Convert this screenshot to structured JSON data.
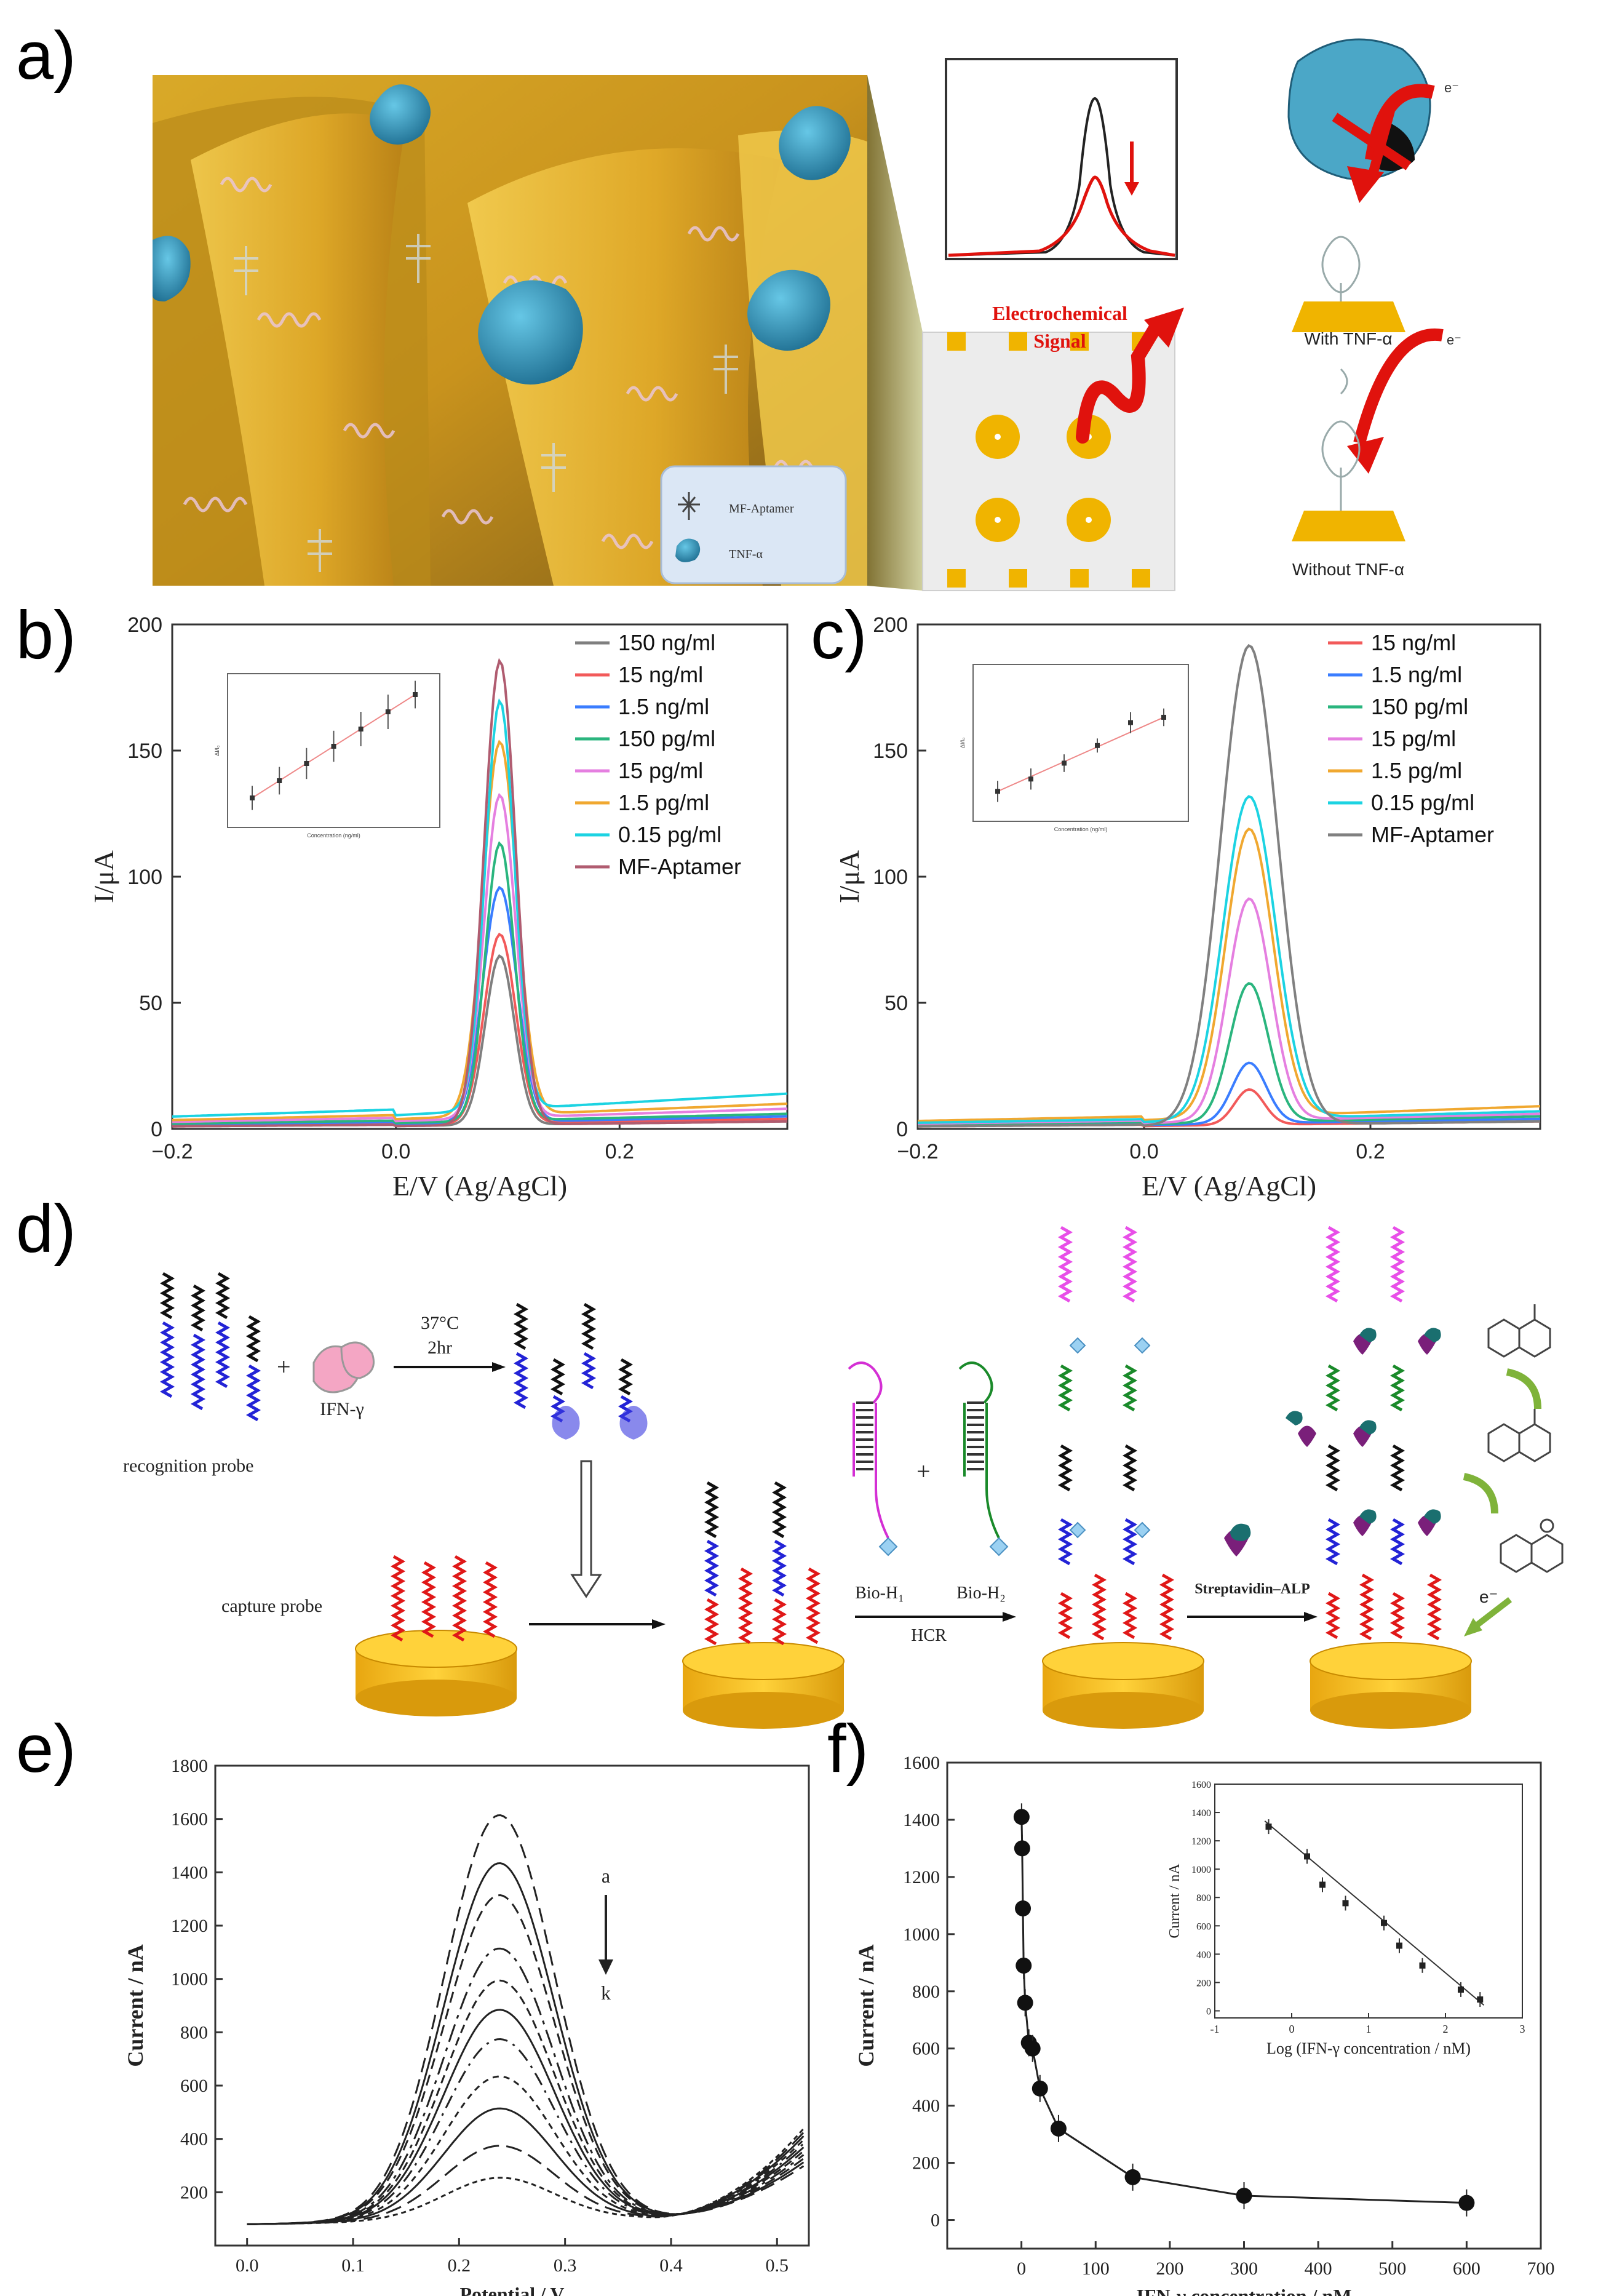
{
  "panel_labels": {
    "a": "a)",
    "b": "b)",
    "c": "c)",
    "d": "d)",
    "e": "e)",
    "f": "f)"
  },
  "panel_a": {
    "legend": {
      "aptamer": "MF-Aptamer",
      "tnf": "TNF-α"
    },
    "signal_label_1": "Electrochemical",
    "signal_label_2": "Signal",
    "electron": "e⁻",
    "with_label": "With TNF-α",
    "without_label": "Without TNF-α",
    "colors": {
      "gold": "#e5b321",
      "protein": "#3fa3c7",
      "signal_red": "#e0120d"
    }
  },
  "panel_d": {
    "recognition_probe": "recognition probe",
    "ifn": "IFN-γ",
    "temp": "37°C",
    "time": "2hr",
    "capture_probe": "capture probe",
    "bio_h1": "Bio-H₁",
    "bio_h2": "Bio-H₂",
    "hcr": "HCR",
    "streptavidin": "Streptavidin–ALP",
    "electron": "e⁻",
    "plus": "+"
  },
  "chart_data": [
    {
      "id": "b",
      "type": "line",
      "xlabel": "E/V (Ag/AgCl)",
      "ylabel": "I/μA",
      "xlim": [
        -0.2,
        0.35
      ],
      "ylim": [
        0,
        200
      ],
      "xticks": [
        "-0.2",
        "0.0",
        "0.2"
      ],
      "yticks": [
        "0",
        "50",
        "100",
        "150",
        "200"
      ],
      "legend_position": "top-right",
      "series": [
        {
          "name": "150 ng/ml",
          "color": "#7f7f7f",
          "peak": 67,
          "base": 3
        },
        {
          "name": "15 ng/ml",
          "color": "#f25a5a",
          "peak": 75,
          "base": 4
        },
        {
          "name": "1.5 ng/ml",
          "color": "#3a7dff",
          "peak": 93,
          "base": 5
        },
        {
          "name": "150 pg/ml",
          "color": "#2ab57e",
          "peak": 110,
          "base": 6
        },
        {
          "name": "15 pg/ml",
          "color": "#e57fe0",
          "peak": 128,
          "base": 8
        },
        {
          "name": "1.5 pg/ml",
          "color": "#f0a830",
          "peak": 148,
          "base": 10
        },
        {
          "name": "0.15 pg/ml",
          "color": "#1cd3e2",
          "peak": 162,
          "base": 14
        },
        {
          "name": "MF-Aptamer",
          "color": "#b05c70",
          "peak": 184,
          "base": 3
        }
      ],
      "inset": {
        "type": "scatter",
        "xlabel": "Concentration (ng/ml)",
        "ylabel": "ΔI/I₀",
        "points": [
          1,
          2,
          3,
          4,
          5,
          6,
          7
        ],
        "error": [
          0.7,
          0.8,
          0.9,
          0.9,
          1.0,
          1.0,
          0.8
        ]
      }
    },
    {
      "id": "c",
      "type": "line",
      "xlabel": "E/V (Ag/AgCl)",
      "ylabel": "I/μA",
      "xlim": [
        -0.2,
        0.35
      ],
      "ylim": [
        0,
        200
      ],
      "xticks": [
        "-0.2",
        "0.0",
        "0.2"
      ],
      "yticks": [
        "0",
        "50",
        "100",
        "150",
        "200"
      ],
      "legend_position": "top-right",
      "series": [
        {
          "name": "15 ng/ml",
          "color": "#f25a5a",
          "peak": 14,
          "base": 3
        },
        {
          "name": "1.5 ng/ml",
          "color": "#3a7dff",
          "peak": 24,
          "base": 4
        },
        {
          "name": "150 pg/ml",
          "color": "#2ab57e",
          "peak": 55,
          "base": 5
        },
        {
          "name": "15 pg/ml",
          "color": "#e57fe0",
          "peak": 88,
          "base": 6
        },
        {
          "name": "1.5 pg/ml",
          "color": "#f0a830",
          "peak": 114,
          "base": 9
        },
        {
          "name": "0.15 pg/ml",
          "color": "#1cd3e2",
          "peak": 128,
          "base": 7
        },
        {
          "name": "MF-Aptamer",
          "color": "#808080",
          "peak": 190,
          "base": 3
        }
      ],
      "inset": {
        "type": "scatter",
        "xlabel": "Concentration (ng/ml)",
        "ylabel": "ΔI/I₀",
        "points": [
          1,
          1.7,
          2.6,
          3.6,
          4.9,
          5.2
        ],
        "error": [
          0.6,
          0.6,
          0.5,
          0.4,
          0.6,
          0.5
        ]
      }
    },
    {
      "id": "e",
      "type": "line",
      "xlabel": "Potential / V",
      "ylabel": "Current / nA",
      "xlim": [
        -0.03,
        0.53
      ],
      "ylim": [
        0,
        1800
      ],
      "xticks": [
        "0.0",
        "0.1",
        "0.2",
        "0.3",
        "0.4",
        "0.5"
      ],
      "yticks": [
        "200",
        "400",
        "600",
        "800",
        "1000",
        "1200",
        "1400",
        "1600",
        "1800"
      ],
      "arrow_top": "a",
      "arrow_bottom": "k",
      "peaks": [
        1600,
        1420,
        1300,
        1100,
        980,
        870,
        760,
        620,
        500,
        360,
        240
      ]
    },
    {
      "id": "f",
      "type": "scatter",
      "xlabel": "IFN-γ concentration / nM",
      "ylabel": "Current / nA",
      "xlim": [
        -100,
        700
      ],
      "ylim": [
        -100,
        1600
      ],
      "xticks": [
        "0",
        "100",
        "200",
        "300",
        "400",
        "500",
        "600",
        "700"
      ],
      "yticks": [
        "0",
        "200",
        "400",
        "600",
        "800",
        "1000",
        "1200",
        "1400",
        "1600"
      ],
      "x": [
        0.2,
        1,
        2,
        3,
        5,
        10,
        15,
        25,
        50,
        150,
        300,
        600
      ],
      "y": [
        1410,
        1300,
        1090,
        890,
        760,
        620,
        600,
        460,
        320,
        150,
        85,
        60
      ],
      "inset": {
        "type": "scatter",
        "xlabel": "Log (IFN-γ concentration / nM)",
        "ylabel": "Current / nA",
        "xlim": [
          -1,
          3
        ],
        "ylim": [
          -50,
          1600
        ],
        "xticks": [
          "-1",
          "0",
          "1",
          "2",
          "3"
        ],
        "yticks": [
          "0",
          "200",
          "400",
          "600",
          "800",
          "1000",
          "1200",
          "1400",
          "1600"
        ],
        "x": [
          -0.3,
          0.2,
          0.4,
          0.7,
          1.2,
          1.4,
          1.7,
          2.2,
          2.45
        ],
        "y": [
          1300,
          1090,
          890,
          760,
          620,
          460,
          320,
          150,
          80
        ]
      }
    }
  ]
}
